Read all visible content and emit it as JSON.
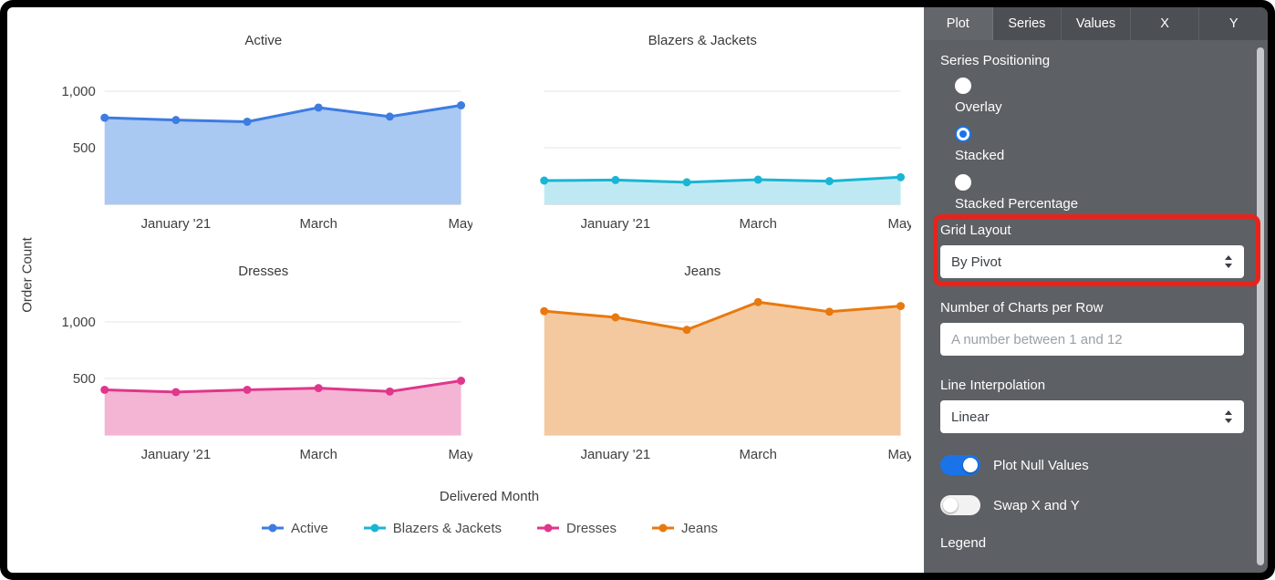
{
  "chart_area": {
    "y_axis_label": "Order Count",
    "x_axis_label": "Delivered Month",
    "legend": [
      {
        "label": "Active",
        "color": "#3d7ce0"
      },
      {
        "label": "Blazers & Jackets",
        "color": "#1ab5d4"
      },
      {
        "label": "Dresses",
        "color": "#e0368c"
      },
      {
        "label": "Jeans",
        "color": "#e8790f"
      }
    ]
  },
  "chart_data": [
    {
      "type": "area",
      "title": "Active",
      "color": "#3d7ce0",
      "fill_color": "#a9c8f2",
      "values": [
        765,
        745,
        730,
        855,
        775,
        875
      ],
      "x_ticks": {
        "labels": [
          "January '21",
          "March",
          "May"
        ],
        "indices": [
          1,
          3,
          5
        ]
      },
      "y_ticks": [
        {
          "value": 500,
          "label": "500"
        },
        {
          "value": 1000,
          "label": "1,000"
        }
      ],
      "ylim": [
        0,
        1250
      ],
      "show_y_labels": true,
      "xlabel": "Delivered Month",
      "ylabel": "Order Count"
    },
    {
      "type": "area",
      "title": "Blazers & Jackets",
      "color": "#1ab5d4",
      "fill_color": "#bfe9f2",
      "values": [
        210,
        215,
        195,
        218,
        205,
        240
      ],
      "x_ticks": {
        "labels": [
          "January '21",
          "March",
          "May"
        ],
        "indices": [
          1,
          3,
          5
        ]
      },
      "y_ticks": [
        {
          "value": 500,
          "label": "500"
        },
        {
          "value": 1000,
          "label": "1,000"
        }
      ],
      "ylim": [
        0,
        1250
      ],
      "show_y_labels": false,
      "xlabel": "Delivered Month",
      "ylabel": "Order Count"
    },
    {
      "type": "area",
      "title": "Dresses",
      "color": "#e0368c",
      "fill_color": "#f4b4d4",
      "values": [
        400,
        380,
        400,
        415,
        385,
        480
      ],
      "x_ticks": {
        "labels": [
          "January '21",
          "March",
          "May"
        ],
        "indices": [
          1,
          3,
          5
        ]
      },
      "y_ticks": [
        {
          "value": 500,
          "label": "500"
        },
        {
          "value": 1000,
          "label": "1,000"
        }
      ],
      "ylim": [
        0,
        1250
      ],
      "show_y_labels": true,
      "xlabel": "Delivered Month",
      "ylabel": "Order Count"
    },
    {
      "type": "area",
      "title": "Jeans",
      "color": "#e8790f",
      "fill_color": "#f4c9a0",
      "values": [
        1095,
        1040,
        930,
        1175,
        1090,
        1140
      ],
      "x_ticks": {
        "labels": [
          "January '21",
          "March",
          "May"
        ],
        "indices": [
          1,
          3,
          5
        ]
      },
      "y_ticks": [
        {
          "value": 500,
          "label": "500"
        },
        {
          "value": 1000,
          "label": "1,000"
        }
      ],
      "ylim": [
        0,
        1250
      ],
      "show_y_labels": false,
      "xlabel": "Delivered Month",
      "ylabel": "Order Count"
    }
  ],
  "panel": {
    "tabs": [
      {
        "label": "Plot",
        "active": true
      },
      {
        "label": "Series",
        "active": false
      },
      {
        "label": "Values",
        "active": false
      },
      {
        "label": "X",
        "active": false
      },
      {
        "label": "Y",
        "active": false
      }
    ],
    "series_positioning": {
      "label": "Series Positioning",
      "options": [
        {
          "label": "Overlay",
          "selected": false
        },
        {
          "label": "Stacked",
          "selected": true
        },
        {
          "label": "Stacked Percentage",
          "selected": false
        }
      ]
    },
    "grid_layout": {
      "label": "Grid Layout",
      "value": "By Pivot"
    },
    "charts_per_row": {
      "label": "Number of Charts per Row",
      "placeholder": "A number between 1 and 12"
    },
    "line_interpolation": {
      "label": "Line Interpolation",
      "value": "Linear"
    },
    "toggles": [
      {
        "label": "Plot Null Values",
        "on": true
      },
      {
        "label": "Swap X and Y",
        "on": false
      }
    ],
    "legend_section_label": "Legend"
  },
  "annotation": {
    "color": "#e8231b",
    "target": "Grid Layout"
  },
  "colors": {
    "accent_blue": "#1a73e8",
    "panel_bg": "#5d6064"
  }
}
